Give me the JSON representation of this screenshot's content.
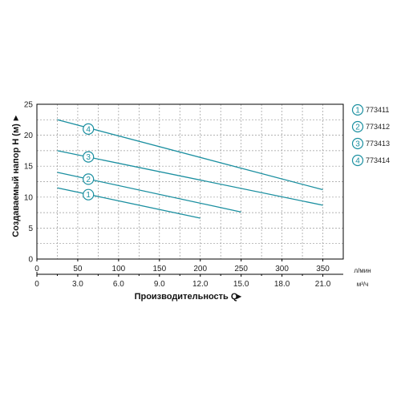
{
  "chart_data": {
    "type": "line",
    "ylabel": "Создаваемый напор H (м)",
    "xlabel": "Производительность Q",
    "x_unit": "л/мин",
    "x2_unit": "м³/ч",
    "xlim": [
      0,
      375
    ],
    "ylim": [
      0,
      25
    ],
    "x_ticks": [
      "0",
      "50",
      "100",
      "150",
      "200",
      "250",
      "300",
      "350"
    ],
    "x2_ticks": [
      "0",
      "3.0",
      "6.0",
      "9.0",
      "12.0",
      "15.0",
      "18.0",
      "21.0"
    ],
    "y_ticks": [
      "0",
      "5",
      "10",
      "15",
      "20",
      "25"
    ],
    "grid": true,
    "legend_position": "right",
    "colors": {
      "line": "#1a8fa0",
      "axis": "#000000",
      "grid": "#999999"
    },
    "series": [
      {
        "name": "773411",
        "marker": "1",
        "points": [
          [
            25,
            11.5
          ],
          [
            200,
            6.6
          ]
        ],
        "marker_at": [
          63,
          10.4
        ]
      },
      {
        "name": "773412",
        "marker": "2",
        "points": [
          [
            25,
            14.0
          ],
          [
            250,
            7.6
          ]
        ],
        "marker_at": [
          63,
          12.9
        ]
      },
      {
        "name": "773413",
        "marker": "3",
        "points": [
          [
            25,
            17.5
          ],
          [
            350,
            8.7
          ]
        ],
        "marker_at": [
          63,
          16.5
        ]
      },
      {
        "name": "773414",
        "marker": "4",
        "points": [
          [
            25,
            22.5
          ],
          [
            350,
            11.2
          ]
        ],
        "marker_at": [
          63,
          21.0
        ]
      }
    ]
  }
}
